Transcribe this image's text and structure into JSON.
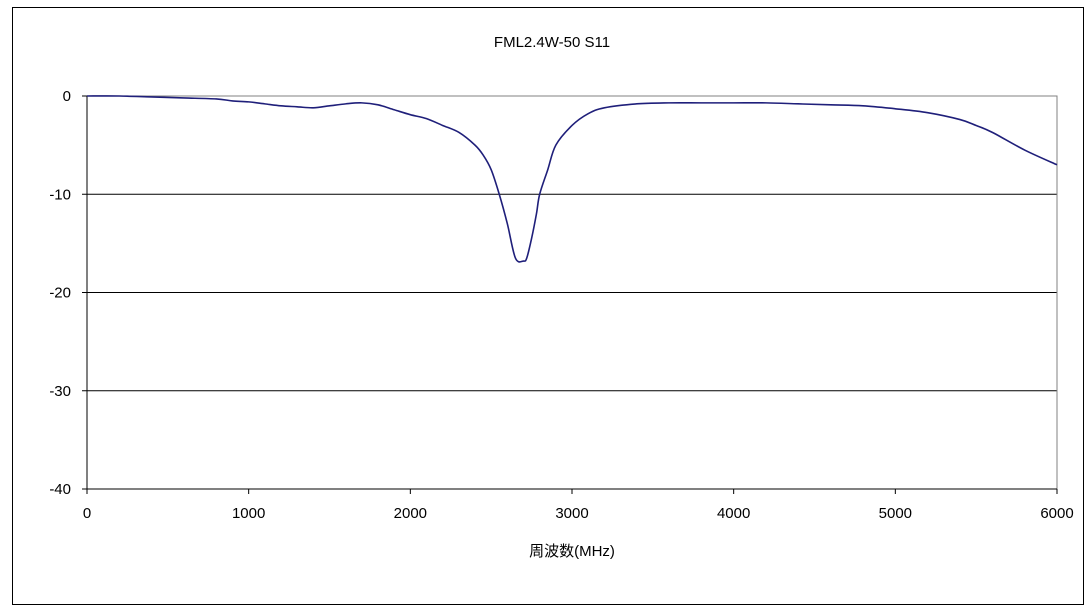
{
  "chart_data": {
    "type": "line",
    "title": "FML2.4W-50 S11",
    "xlabel": "周波数(MHz)",
    "ylabel": "",
    "xlim": [
      0,
      6000
    ],
    "ylim": [
      -40,
      0
    ],
    "xticks": [
      "0",
      "1000",
      "2000",
      "3000",
      "4000",
      "5000",
      "6000"
    ],
    "yticks": [
      "0",
      "-10",
      "-20",
      "-30",
      "-40"
    ],
    "grid": "horizontal",
    "legend": "none",
    "series": [
      {
        "color": "#1f1f7a",
        "x": [
          0,
          200,
          400,
          600,
          800,
          900,
          1000,
          1100,
          1200,
          1300,
          1400,
          1500,
          1600,
          1700,
          1800,
          1900,
          2000,
          2100,
          2200,
          2300,
          2400,
          2450,
          2500,
          2550,
          2600,
          2650,
          2700,
          2720,
          2750,
          2780,
          2800,
          2850,
          2900,
          3000,
          3100,
          3200,
          3400,
          3600,
          3800,
          4000,
          4200,
          4400,
          4600,
          4800,
          5000,
          5200,
          5400,
          5500,
          5600,
          5800,
          6000
        ],
        "y": [
          0,
          0,
          -0.1,
          -0.2,
          -0.3,
          -0.5,
          -0.6,
          -0.8,
          -1,
          -1.1,
          -1.2,
          -1,
          -0.8,
          -0.7,
          -0.9,
          -1.4,
          -1.9,
          -2.3,
          -3,
          -3.7,
          -5,
          -6,
          -7.5,
          -10,
          -13,
          -16.5,
          -16.8,
          -16.5,
          -14.5,
          -12,
          -10,
          -7.5,
          -5,
          -3,
          -1.8,
          -1.2,
          -0.8,
          -0.7,
          -0.7,
          -0.7,
          -0.7,
          -0.8,
          -0.9,
          -1,
          -1.3,
          -1.7,
          -2.4,
          -3,
          -3.7,
          -5.5,
          -7
        ]
      }
    ]
  }
}
